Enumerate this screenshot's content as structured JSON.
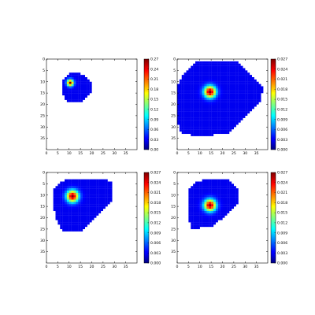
{
  "chart_data": [
    {
      "type": "heatmap",
      "grid_size": 40,
      "xlim": [
        0,
        40
      ],
      "ylim": [
        40,
        0
      ],
      "xticks": [
        "0",
        "5",
        "10",
        "15",
        "20",
        "25",
        "30",
        "35"
      ],
      "yticks": [
        "0",
        "5",
        "10",
        "15",
        "20",
        "25",
        "30",
        "35"
      ],
      "colormap": "jet",
      "clim": [
        0,
        0.27
      ],
      "colorbar_ticks": [
        "0.00",
        "0.03",
        "0.06",
        "0.09",
        "0.12",
        "0.15",
        "0.18",
        "0.21",
        "0.24",
        "0.27"
      ],
      "peak": {
        "x": 10.5,
        "y": 10.5,
        "value": 0.27,
        "sigma": 1.0
      },
      "region_outline": [
        [
          7,
          10
        ],
        [
          10,
          6.5
        ],
        [
          15,
          6.5
        ],
        [
          18,
          8
        ],
        [
          20,
          10
        ],
        [
          20,
          15
        ],
        [
          16,
          19
        ],
        [
          10,
          19
        ],
        [
          8,
          18
        ],
        [
          7,
          14
        ]
      ]
    },
    {
      "type": "heatmap",
      "grid_size": 40,
      "xlim": [
        0,
        40
      ],
      "ylim": [
        40,
        0
      ],
      "xticks": [
        "0",
        "5",
        "10",
        "15",
        "20",
        "25",
        "30",
        "35"
      ],
      "yticks": [
        "0",
        "5",
        "10",
        "15",
        "20",
        "25",
        "30",
        "35"
      ],
      "colormap": "jet",
      "clim": [
        0,
        0.027
      ],
      "colorbar_ticks": [
        "0.000",
        "0.003",
        "0.006",
        "0.009",
        "0.012",
        "0.015",
        "0.018",
        "0.021",
        "0.024",
        "0.027"
      ],
      "peak": {
        "x": 14.5,
        "y": 14.5,
        "value": 0.027,
        "sigma": 1.8
      },
      "region_outline": [
        [
          0,
          12
        ],
        [
          3,
          6
        ],
        [
          9,
          1
        ],
        [
          27,
          1
        ],
        [
          33,
          7
        ],
        [
          38,
          12
        ],
        [
          37,
          18
        ],
        [
          30,
          26
        ],
        [
          22,
          33
        ],
        [
          10,
          34
        ],
        [
          2,
          33
        ],
        [
          0,
          28
        ]
      ]
    },
    {
      "type": "heatmap",
      "grid_size": 40,
      "xlim": [
        0,
        40
      ],
      "ylim": [
        40,
        0
      ],
      "xticks": [
        "0",
        "5",
        "10",
        "15",
        "20",
        "25",
        "30",
        "35"
      ],
      "yticks": [
        "0",
        "5",
        "10",
        "15",
        "20",
        "25",
        "30",
        "35"
      ],
      "colormap": "jet",
      "clim": [
        0,
        0.027
      ],
      "colorbar_ticks": [
        "0.000",
        "0.003",
        "0.006",
        "0.009",
        "0.012",
        "0.015",
        "0.018",
        "0.021",
        "0.024",
        "0.027"
      ],
      "peak": {
        "x": 11.5,
        "y": 10.5,
        "value": 0.027,
        "sigma": 1.8
      },
      "region_outline": [
        [
          3,
          8
        ],
        [
          6,
          4
        ],
        [
          10,
          3
        ],
        [
          26,
          3
        ],
        [
          29,
          4
        ],
        [
          29,
          13
        ],
        [
          24,
          18
        ],
        [
          16,
          26
        ],
        [
          7,
          26
        ],
        [
          4,
          20
        ],
        [
          3,
          14
        ]
      ]
    },
    {
      "type": "heatmap",
      "grid_size": 40,
      "xlim": [
        0,
        40
      ],
      "ylim": [
        40,
        0
      ],
      "xticks": [
        "0",
        "5",
        "10",
        "15",
        "20",
        "25",
        "30",
        "35"
      ],
      "yticks": [
        "0",
        "5",
        "10",
        "15",
        "20",
        "25",
        "30",
        "35"
      ],
      "colormap": "jet",
      "clim": [
        0,
        0.027
      ],
      "colorbar_ticks": [
        "0.000",
        "0.003",
        "0.006",
        "0.009",
        "0.012",
        "0.015",
        "0.018",
        "0.021",
        "0.024",
        "0.027"
      ],
      "peak": {
        "x": 14.5,
        "y": 14.5,
        "value": 0.027,
        "sigma": 1.8
      },
      "region_outline": [
        [
          5,
          7
        ],
        [
          9,
          4
        ],
        [
          14,
          3
        ],
        [
          23,
          3
        ],
        [
          27,
          7
        ],
        [
          27,
          14
        ],
        [
          22,
          19
        ],
        [
          15,
          24
        ],
        [
          6,
          25
        ],
        [
          5,
          18
        ]
      ]
    }
  ]
}
